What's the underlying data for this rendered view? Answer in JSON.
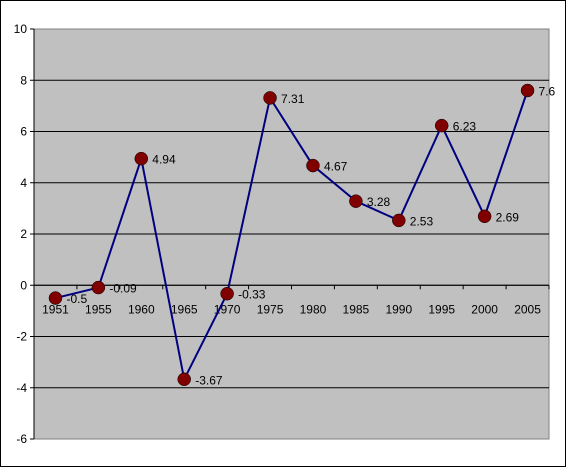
{
  "chart_data": {
    "type": "line",
    "title": "",
    "xlabel": "",
    "ylabel": "",
    "categories": [
      "1951",
      "1955",
      "1960",
      "1965",
      "1970",
      "1975",
      "1980",
      "1985",
      "1990",
      "1995",
      "2000",
      "2005"
    ],
    "series": [
      {
        "values": [
          -0.5,
          -0.09,
          4.94,
          -3.67,
          -0.33,
          7.31,
          4.67,
          3.28,
          2.53,
          6.23,
          2.69,
          7.6
        ],
        "data_labels": [
          "-0.5",
          "-0.09",
          "4.94",
          "-3.67",
          "-0.33",
          "7.31",
          "4.67",
          "3.28",
          "2.53",
          "6.23",
          "2.69",
          "7.6"
        ],
        "line_color": "#000080",
        "marker_color": "#800000"
      }
    ],
    "ylim": [
      -6,
      10
    ],
    "y_ticks": [
      -6,
      -4,
      -2,
      0,
      2,
      4,
      6,
      8,
      10
    ],
    "y_tick_labels": [
      "-6",
      "-4",
      "-2",
      "0",
      "2",
      "4",
      "6",
      "8",
      "10"
    ],
    "x_axis_crosses_at": 0,
    "grid": true,
    "legend": "none",
    "plot_background": "#c0c0c0",
    "gridline_color": "#000000"
  }
}
